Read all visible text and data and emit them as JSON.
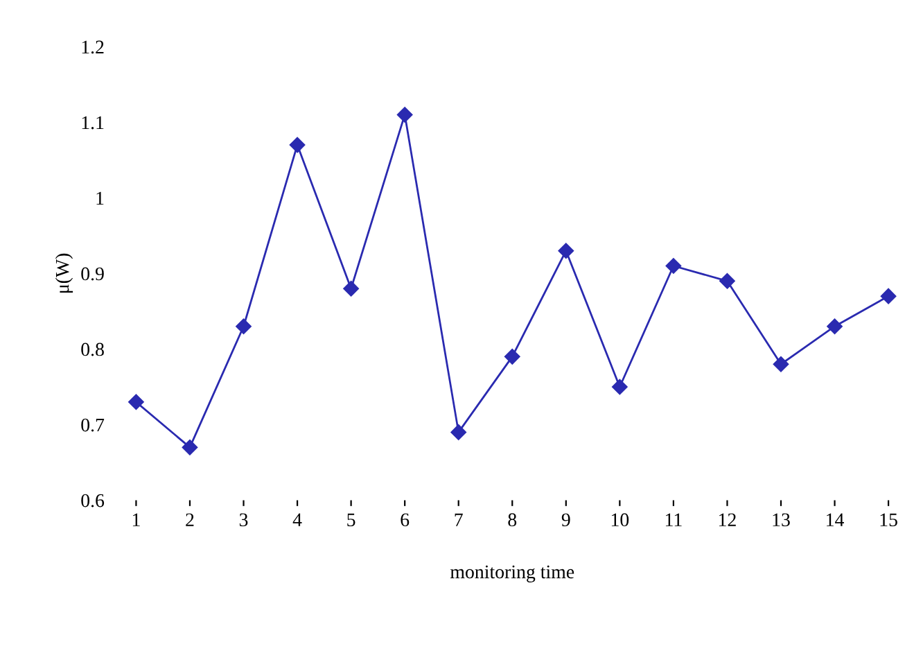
{
  "chart_data": {
    "type": "line",
    "xlabel": "monitoring time",
    "ylabel": "μ(W)",
    "categories": [
      "1",
      "2",
      "3",
      "4",
      "5",
      "6",
      "7",
      "8",
      "9",
      "10",
      "11",
      "12",
      "13",
      "14",
      "15"
    ],
    "series": [
      {
        "color": "#2a2ab0",
        "values": [
          0.73,
          0.67,
          0.83,
          1.07,
          0.88,
          1.11,
          0.69,
          0.79,
          0.93,
          0.75,
          0.91,
          0.89,
          0.78,
          0.83,
          0.87
        ]
      }
    ],
    "ylim": [
      0.6,
      1.2
    ],
    "yticks": [
      0.6,
      0.7,
      0.8,
      0.9,
      1,
      1.1,
      1.2
    ],
    "marker": "diamond",
    "line_style": "solid",
    "grid": false,
    "legend": false
  }
}
